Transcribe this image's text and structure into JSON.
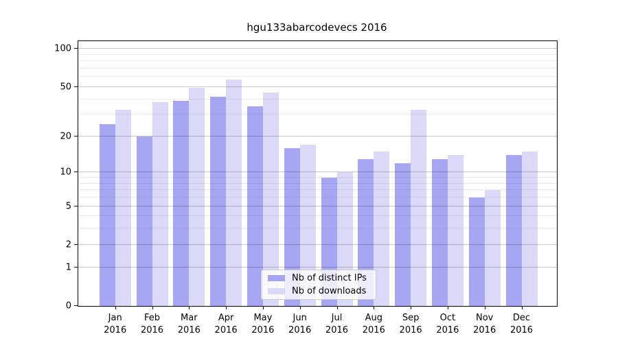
{
  "title": "hgu133abarcodevecs 2016",
  "legend": {
    "items": [
      {
        "label": "Nb of distinct IPs",
        "color": "#a6a6f2"
      },
      {
        "label": "Nb of downloads",
        "color": "#dadaf8"
      }
    ]
  },
  "chart_data": {
    "type": "bar",
    "title": "hgu133abarcodevecs 2016",
    "categories": [
      "Jan 2016",
      "Feb 2016",
      "Mar 2016",
      "Apr 2016",
      "May 2016",
      "Jun 2016",
      "Jul 2016",
      "Aug 2016",
      "Sep 2016",
      "Oct 2016",
      "Nov 2016",
      "Dec 2016"
    ],
    "series": [
      {
        "name": "Nb of distinct IPs",
        "color": "#a6a6f2",
        "values": [
          25,
          20,
          39,
          42,
          35,
          16,
          9,
          13,
          12,
          13,
          6,
          14
        ]
      },
      {
        "name": "Nb of downloads",
        "color": "#dadaf8",
        "values": [
          33,
          38,
          49,
          57,
          45,
          17,
          10,
          15,
          33,
          14,
          7,
          15
        ]
      }
    ],
    "yscale": "log1p",
    "ylim": [
      0,
      115
    ],
    "yticks": [
      0,
      1,
      2,
      5,
      10,
      20,
      50,
      100
    ],
    "minor_gridlines": [
      3,
      4,
      6,
      7,
      8,
      9,
      30,
      40,
      60,
      70,
      80,
      90
    ],
    "grid": true,
    "legend_position": "lower center",
    "xlabel": "",
    "ylabel": ""
  }
}
